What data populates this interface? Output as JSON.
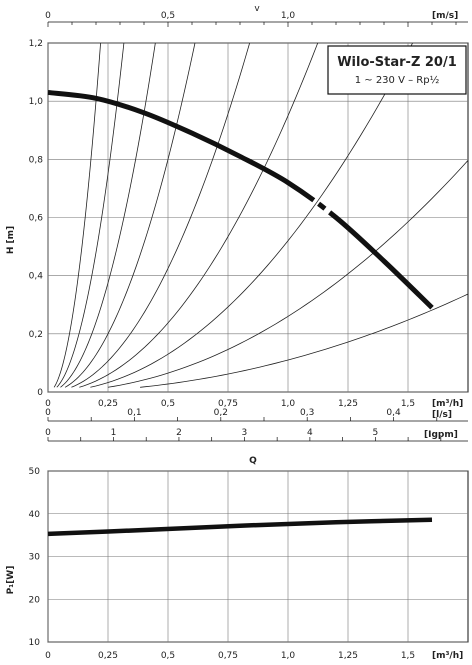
{
  "chart_data": [
    {
      "type": "line",
      "title": "Wilo-Star-Z 20/1",
      "subtitle": "1 ~ 230 V – Rp½",
      "xlabel": "Q",
      "ylabel": "H [m]",
      "x_unit": "[m³/h]",
      "xlim": [
        0,
        1.75
      ],
      "ylim": [
        0,
        1.2
      ],
      "x_ticks": [
        "0",
        "0,25",
        "0,5",
        "0,75",
        "1,0",
        "1,25",
        "1,5"
      ],
      "y_ticks": [
        "0",
        "0,2",
        "0,4",
        "0,6",
        "0,8",
        "1,0",
        "1,2"
      ],
      "grid": true,
      "top_axis": {
        "label": "v",
        "unit": "[m/s]",
        "ticks": [
          {
            "label": "0",
            "value": 0
          },
          {
            "label": "0,5",
            "value": 0.5
          },
          {
            "label": "1,0",
            "value": 1.0
          }
        ],
        "m3h_per_unit": 1.0
      },
      "secondary_axes": [
        {
          "unit": "[l/s]",
          "ticks": [
            {
              "label": "0",
              "value": 0
            },
            {
              "label": "0,1",
              "value": 0.1
            },
            {
              "label": "0,2",
              "value": 0.2
            },
            {
              "label": "0,3",
              "value": 0.3
            },
            {
              "label": "0,4",
              "value": 0.4
            }
          ],
          "m3h_per_unit": 3.6
        },
        {
          "unit": "[Igpm]",
          "ticks": [
            {
              "label": "0",
              "value": 0
            },
            {
              "label": "1",
              "value": 1
            },
            {
              "label": "2",
              "value": 2
            },
            {
              "label": "3",
              "value": 3
            },
            {
              "label": "4",
              "value": 4
            },
            {
              "label": "5",
              "value": 5
            }
          ],
          "m3h_per_unit": 0.2728
        }
      ],
      "series": [
        {
          "role": "pump-curve",
          "x": [
            0,
            0.2,
            0.4,
            0.6,
            0.8,
            1.0,
            1.2,
            1.4,
            1.6
          ],
          "y": [
            1.03,
            1.01,
            0.96,
            0.89,
            0.81,
            0.72,
            0.6,
            0.45,
            0.29
          ]
        }
      ],
      "system_curve_coefficients": [
        25,
        12,
        6,
        3.2,
        1.7,
        0.95,
        0.52,
        0.26,
        0.11
      ]
    },
    {
      "type": "line",
      "title": "",
      "xlabel": "",
      "ylabel": "P₁[W]",
      "x_unit": "[m³/h]",
      "xlim": [
        0,
        1.75
      ],
      "ylim": [
        10,
        50
      ],
      "x_ticks": [
        "0",
        "0,25",
        "0,5",
        "0,75",
        "1,0",
        "1,25",
        "1,5"
      ],
      "y_ticks": [
        "10",
        "20",
        "30",
        "40",
        "50"
      ],
      "grid": true,
      "series": [
        {
          "role": "power-curve",
          "x": [
            0,
            0.4,
            0.8,
            1.2,
            1.6
          ],
          "y": [
            35.3,
            36.2,
            37.2,
            38.0,
            38.6
          ]
        }
      ]
    }
  ]
}
